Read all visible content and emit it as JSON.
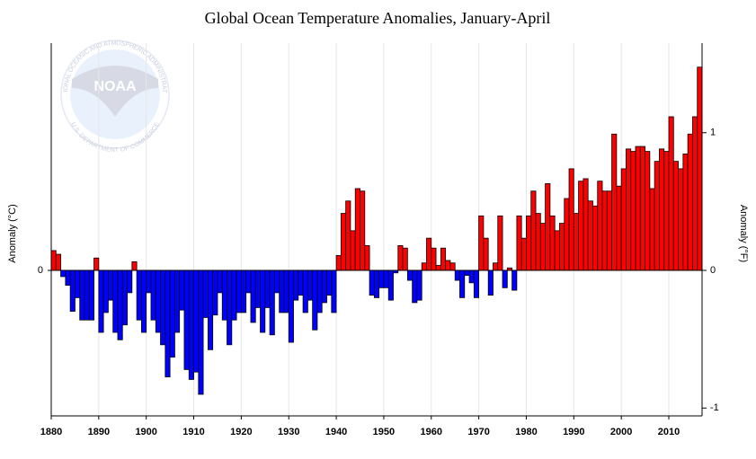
{
  "chart_data": {
    "type": "bar",
    "title": "Global Ocean Temperature Anomalies, January-April",
    "y_label": "Anomaly (°C)",
    "y2_label": "Anomaly (°F)",
    "logo": {
      "name": "NOAA",
      "top_text": "NATIONAL OCEANIC AND ATMOSPHERIC ADMINISTRATION",
      "bottom_text": "U.S. DEPARTMENT OF COMMERCE"
    },
    "x": [
      1880,
      1881,
      1882,
      1883,
      1884,
      1885,
      1886,
      1887,
      1888,
      1889,
      1890,
      1891,
      1892,
      1893,
      1894,
      1895,
      1896,
      1897,
      1898,
      1899,
      1900,
      1901,
      1902,
      1903,
      1904,
      1905,
      1906,
      1907,
      1908,
      1909,
      1910,
      1911,
      1912,
      1913,
      1914,
      1915,
      1916,
      1917,
      1918,
      1919,
      1920,
      1921,
      1922,
      1923,
      1924,
      1925,
      1926,
      1927,
      1928,
      1929,
      1930,
      1931,
      1932,
      1933,
      1934,
      1935,
      1936,
      1937,
      1938,
      1939,
      1940,
      1941,
      1942,
      1943,
      1944,
      1945,
      1946,
      1947,
      1948,
      1949,
      1950,
      1951,
      1952,
      1953,
      1954,
      1955,
      1956,
      1957,
      1958,
      1959,
      1960,
      1961,
      1962,
      1963,
      1964,
      1965,
      1966,
      1967,
      1968,
      1969,
      1970,
      1971,
      1972,
      1973,
      1974,
      1975,
      1976,
      1977,
      1978,
      1979,
      1980,
      1981,
      1982,
      1983,
      1984,
      1985,
      1986,
      1987,
      1988,
      1989,
      1990,
      1991,
      1992,
      1993,
      1994,
      1995,
      1996,
      1997,
      1998,
      1999,
      2000,
      2001,
      2002,
      2003,
      2004,
      2005,
      2006,
      2007,
      2008,
      2009,
      2010,
      2011,
      2012,
      2013,
      2014,
      2015,
      2016
    ],
    "values": [
      0.08,
      0.065,
      -0.025,
      -0.06,
      -0.165,
      -0.11,
      -0.2,
      -0.2,
      -0.2,
      0.05,
      -0.25,
      -0.17,
      -0.12,
      -0.25,
      -0.28,
      -0.22,
      -0.09,
      0.035,
      -0.2,
      -0.25,
      -0.09,
      -0.2,
      -0.25,
      -0.3,
      -0.43,
      -0.35,
      -0.25,
      -0.16,
      -0.4,
      -0.44,
      -0.41,
      -0.5,
      -0.19,
      -0.32,
      -0.18,
      -0.09,
      -0.2,
      -0.3,
      -0.2,
      -0.17,
      -0.17,
      -0.09,
      -0.21,
      -0.15,
      -0.25,
      -0.15,
      -0.26,
      -0.09,
      -0.17,
      -0.17,
      -0.29,
      -0.12,
      -0.1,
      -0.17,
      -0.12,
      -0.24,
      -0.17,
      -0.13,
      -0.1,
      -0.17,
      0.06,
      0.23,
      0.28,
      0.16,
      0.33,
      0.32,
      0.1,
      -0.1,
      -0.11,
      -0.07,
      -0.07,
      -0.12,
      -0.01,
      0.1,
      0.09,
      -0.04,
      -0.13,
      -0.12,
      0.03,
      0.13,
      0.09,
      0.02,
      0.09,
      0.04,
      0.03,
      -0.04,
      -0.11,
      -0.02,
      -0.05,
      -0.11,
      0.22,
      0.13,
      -0.1,
      0.03,
      0.22,
      -0.07,
      0.01,
      -0.08,
      0.22,
      0.13,
      0.22,
      0.32,
      0.23,
      0.19,
      0.35,
      0.22,
      0.16,
      0.19,
      0.29,
      0.41,
      0.23,
      0.36,
      0.37,
      0.28,
      0.26,
      0.36,
      0.32,
      0.32,
      0.55,
      0.34,
      0.41,
      0.49,
      0.48,
      0.5,
      0.5,
      0.48,
      0.33,
      0.44,
      0.49,
      0.48,
      0.62,
      0.44,
      0.41,
      0.47,
      0.55,
      0.62,
      0.82
    ],
    "positive_color": "#ff0000",
    "negative_color": "#0000ff",
    "xlim": [
      1880,
      2017
    ],
    "xticks": [
      1880,
      1890,
      1900,
      1910,
      1920,
      1930,
      1940,
      1950,
      1960,
      1970,
      1980,
      1990,
      2000,
      2010
    ],
    "ylim": [
      -0.587,
      0.917
    ],
    "yticks": [
      0
    ],
    "y2lim": [
      -1.057,
      1.651
    ],
    "y2ticks": [
      -1,
      0,
      1
    ],
    "grid": true
  }
}
